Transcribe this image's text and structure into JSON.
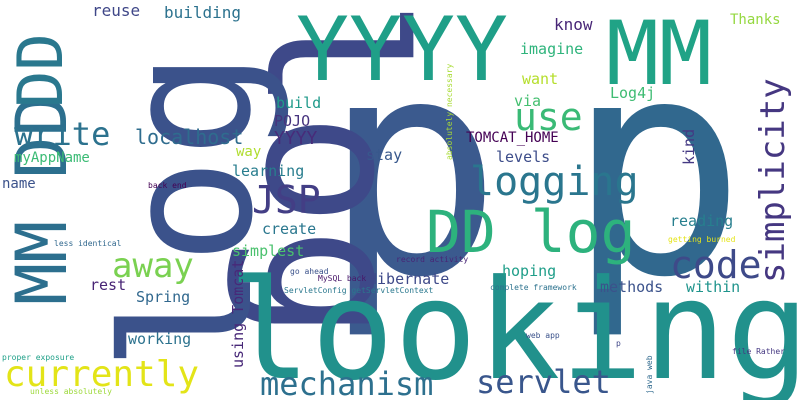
{
  "words": [
    {
      "text": "p",
      "color": "#3b5a8e"
    },
    {
      "text": "p",
      "color": "#31688e"
    },
    {
      "text": "log",
      "color": "#3e4989"
    },
    {
      "text": "log",
      "color": "#3b528b"
    },
    {
      "text": "looking",
      "color": "#21918c"
    },
    {
      "text": "MM DD",
      "color": "#2c6f8e"
    },
    {
      "text": "YYYY",
      "color": "#1f9f88"
    },
    {
      "text": "MM",
      "color": "#20a386"
    },
    {
      "text": "DD",
      "color": "#2a788e"
    },
    {
      "text": "DD log",
      "color": "#2db27d"
    },
    {
      "text": "write",
      "color": "#2c728e"
    },
    {
      "text": "use",
      "color": "#3aba76"
    },
    {
      "text": "logging",
      "color": "#2a768e"
    },
    {
      "text": "JSP",
      "color": "#433e85"
    },
    {
      "text": "away",
      "color": "#7ad151"
    },
    {
      "text": "code",
      "color": "#3e4a89"
    },
    {
      "text": "simplicity",
      "color": "#453781"
    },
    {
      "text": "currently",
      "color": "#e3e418"
    },
    {
      "text": "mechanism",
      "color": "#2d708e"
    },
    {
      "text": "servlet",
      "color": "#39568c"
    },
    {
      "text": "localhost",
      "color": "#2f6c8e"
    },
    {
      "text": "YYYY",
      "color": "#472c7a"
    },
    {
      "text": "building",
      "color": "#2c728e"
    },
    {
      "text": "reuse",
      "color": "#3f4788"
    },
    {
      "text": "know",
      "color": "#482677"
    },
    {
      "text": "Thanks",
      "color": "#95d840"
    },
    {
      "text": "imagine",
      "color": "#2fb47c"
    },
    {
      "text": "want",
      "color": "#b5de2b"
    },
    {
      "text": "via",
      "color": "#44bf70"
    },
    {
      "text": "Log4j",
      "color": "#3fbc73"
    },
    {
      "text": "build",
      "color": "#1f9a8a"
    },
    {
      "text": "POJO",
      "color": "#46337e"
    },
    {
      "text": "kind",
      "color": "#443983"
    },
    {
      "text": "TOMCAT_HOME",
      "color": "#440154"
    },
    {
      "text": "levels",
      "color": "#3d4d8a"
    },
    {
      "text": "way",
      "color": "#b0dd2f"
    },
    {
      "text": "stay",
      "color": "#38588c"
    },
    {
      "text": "myAppName",
      "color": "#3bbb75"
    },
    {
      "text": "name",
      "color": "#3b528b"
    },
    {
      "text": "learning",
      "color": "#287d8e"
    },
    {
      "text": "create",
      "color": "#2a778e"
    },
    {
      "text": "reading",
      "color": "#277f8e"
    },
    {
      "text": "simplest",
      "color": "#4ac16d"
    },
    {
      "text": "hoping",
      "color": "#1f9e89"
    },
    {
      "text": "Hibernate",
      "color": "#3e4989"
    },
    {
      "text": "rest",
      "color": "#482475"
    },
    {
      "text": "Spring",
      "color": "#31688e"
    },
    {
      "text": "methods",
      "color": "#3b528b"
    },
    {
      "text": "within",
      "color": "#1f948c"
    },
    {
      "text": "working",
      "color": "#2c728e"
    },
    {
      "text": "using Tomcat",
      "color": "#482878"
    },
    {
      "text": "absolutely necessary",
      "color": "#a8db34"
    },
    {
      "text": "back end",
      "color": "#440154"
    },
    {
      "text": "less identical",
      "color": "#31688e"
    },
    {
      "text": "record activity",
      "color": "#482576"
    },
    {
      "text": "go ahead",
      "color": "#3b528b"
    },
    {
      "text": "MySQL back",
      "color": "#481769"
    },
    {
      "text": "ServletConfig getServletContext",
      "color": "#2a788e"
    },
    {
      "text": "complete framework",
      "color": "#2c728e"
    },
    {
      "text": "getting burned",
      "color": "#e5e419"
    },
    {
      "text": "web app",
      "color": "#3b528b"
    },
    {
      "text": "p",
      "color": "#3f4788"
    },
    {
      "text": "java web",
      "color": "#306a8e"
    },
    {
      "text": "file Rather",
      "color": "#453882"
    },
    {
      "text": "proper exposure",
      "color": "#1fa088"
    },
    {
      "text": "unless absolutely",
      "color": "#9dd93b"
    }
  ]
}
